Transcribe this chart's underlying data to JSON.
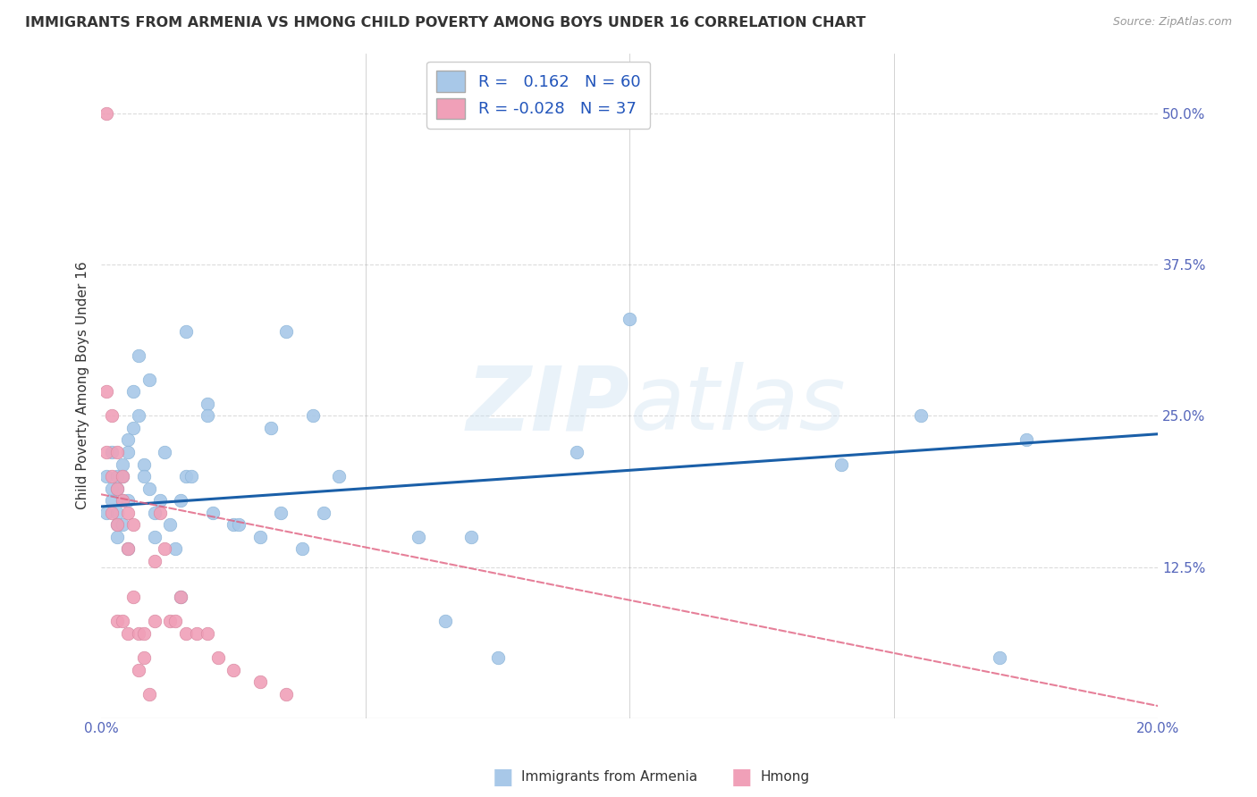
{
  "title": "IMMIGRANTS FROM ARMENIA VS HMONG CHILD POVERTY AMONG BOYS UNDER 16 CORRELATION CHART",
  "source": "Source: ZipAtlas.com",
  "ylabel": "Child Poverty Among Boys Under 16",
  "x_range": [
    0.0,
    0.2
  ],
  "y_range": [
    0.0,
    0.55
  ],
  "background_color": "#ffffff",
  "grid_color": "#cccccc",
  "watermark": "ZIPatlas",
  "legend": {
    "armenia_r": "0.162",
    "armenia_n": "60",
    "hmong_r": "-0.028",
    "hmong_n": "37"
  },
  "armenia_color": "#a8c8e8",
  "hmong_color": "#f0a0b8",
  "armenia_line_color": "#1a5fa8",
  "hmong_line_color": "#e06080",
  "armenia_points_x": [
    0.001,
    0.001,
    0.002,
    0.002,
    0.002,
    0.003,
    0.003,
    0.003,
    0.003,
    0.003,
    0.004,
    0.004,
    0.004,
    0.004,
    0.005,
    0.005,
    0.005,
    0.005,
    0.006,
    0.006,
    0.007,
    0.007,
    0.008,
    0.008,
    0.009,
    0.009,
    0.01,
    0.01,
    0.011,
    0.012,
    0.013,
    0.014,
    0.015,
    0.015,
    0.016,
    0.016,
    0.017,
    0.02,
    0.02,
    0.021,
    0.025,
    0.026,
    0.03,
    0.032,
    0.034,
    0.035,
    0.038,
    0.04,
    0.042,
    0.045,
    0.06,
    0.065,
    0.07,
    0.075,
    0.09,
    0.1,
    0.14,
    0.155,
    0.17,
    0.175
  ],
  "armenia_points_y": [
    0.17,
    0.2,
    0.22,
    0.18,
    0.19,
    0.19,
    0.2,
    0.16,
    0.17,
    0.15,
    0.2,
    0.21,
    0.18,
    0.16,
    0.23,
    0.22,
    0.18,
    0.14,
    0.27,
    0.24,
    0.3,
    0.25,
    0.21,
    0.2,
    0.28,
    0.19,
    0.17,
    0.15,
    0.18,
    0.22,
    0.16,
    0.14,
    0.18,
    0.1,
    0.32,
    0.2,
    0.2,
    0.26,
    0.25,
    0.17,
    0.16,
    0.16,
    0.15,
    0.24,
    0.17,
    0.32,
    0.14,
    0.25,
    0.17,
    0.2,
    0.15,
    0.08,
    0.15,
    0.05,
    0.22,
    0.33,
    0.21,
    0.25,
    0.05,
    0.23
  ],
  "hmong_points_x": [
    0.001,
    0.001,
    0.001,
    0.002,
    0.002,
    0.002,
    0.003,
    0.003,
    0.003,
    0.003,
    0.004,
    0.004,
    0.004,
    0.005,
    0.005,
    0.005,
    0.006,
    0.006,
    0.007,
    0.007,
    0.008,
    0.008,
    0.009,
    0.01,
    0.01,
    0.011,
    0.012,
    0.013,
    0.014,
    0.015,
    0.016,
    0.018,
    0.02,
    0.022,
    0.025,
    0.03,
    0.035
  ],
  "hmong_points_y": [
    0.5,
    0.27,
    0.22,
    0.25,
    0.2,
    0.17,
    0.22,
    0.19,
    0.16,
    0.08,
    0.2,
    0.18,
    0.08,
    0.17,
    0.14,
    0.07,
    0.16,
    0.1,
    0.07,
    0.04,
    0.07,
    0.05,
    0.02,
    0.13,
    0.08,
    0.17,
    0.14,
    0.08,
    0.08,
    0.1,
    0.07,
    0.07,
    0.07,
    0.05,
    0.04,
    0.03,
    0.02
  ],
  "armenia_trend_x0": 0.0,
  "armenia_trend_y0": 0.175,
  "armenia_trend_x1": 0.2,
  "armenia_trend_y1": 0.235,
  "hmong_trend_x0": 0.0,
  "hmong_trend_y0": 0.185,
  "hmong_trend_x1": 0.2,
  "hmong_trend_y1": 0.01
}
